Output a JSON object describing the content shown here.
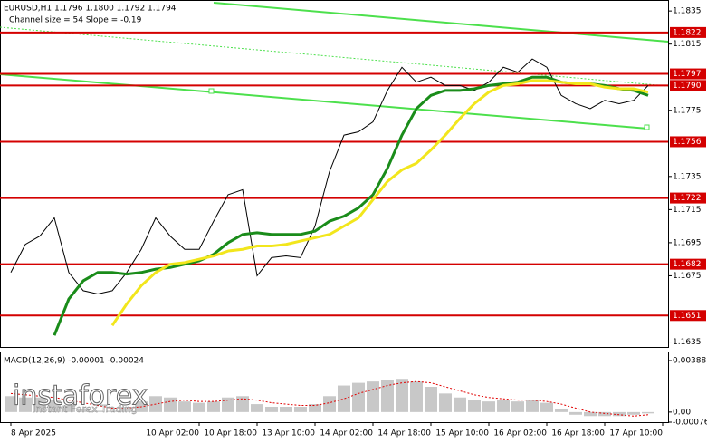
{
  "chart_data": [
    {
      "type": "line",
      "title": "EURUSD,H1  1.1796 1.1800 1.1792 1.1794",
      "subtitle": "Channel size = 54 Slope = -0.19",
      "categories": [
        "8 Apr 2025",
        null,
        null,
        null,
        null,
        null,
        null,
        null,
        null,
        null,
        null,
        null,
        null,
        "10 Apr 02:00",
        null,
        null,
        null,
        "10 Apr 18:00",
        null,
        null,
        null,
        "13 Apr 10:00",
        null,
        null,
        null,
        "14 Apr 02:00",
        null,
        null,
        null,
        "14 Apr 18:00",
        null,
        null,
        null,
        "15 Apr 10:00",
        null,
        null,
        null,
        "16 Apr 02:00",
        null,
        null,
        null,
        "16 Apr 18:00",
        null,
        null,
        null,
        "17 Apr 10:00"
      ],
      "series": [
        {
          "color": "#000000",
          "values": [
            1.1677,
            1.1694,
            1.1699,
            1.171,
            1.1677,
            1.1666,
            1.1664,
            1.1666,
            1.1677,
            1.1691,
            1.171,
            1.1699,
            1.1691,
            1.1691,
            1.1708,
            1.1724,
            1.1727,
            1.1675,
            1.1686,
            1.1687,
            1.1686,
            1.1705,
            1.1738,
            1.176,
            1.1762,
            1.1768,
            1.1787,
            1.1801,
            1.1792,
            1.1795,
            1.179,
            1.179,
            1.1787,
            1.1792,
            1.1801,
            1.1798,
            1.1806,
            1.1801,
            1.1784,
            1.1779,
            1.1776,
            1.1781,
            1.1779,
            1.1781,
            1.179,
            null
          ]
        },
        {
          "color": "#1a8c1a",
          "values": [
            null,
            null,
            null,
            1.1639,
            1.1661,
            1.1672,
            1.1677,
            1.1677,
            1.1676,
            1.1677,
            1.1679,
            1.168,
            1.1682,
            1.1684,
            1.1688,
            1.1695,
            1.17,
            1.1701,
            1.17,
            1.17,
            1.17,
            1.1702,
            1.1708,
            1.1711,
            1.1716,
            1.1724,
            1.174,
            1.176,
            1.1776,
            1.1784,
            1.1787,
            1.1787,
            1.1788,
            1.179,
            1.1791,
            1.1792,
            1.1795,
            1.1795,
            1.1792,
            1.1791,
            1.1791,
            1.179,
            1.1788,
            1.1787,
            1.1784,
            null
          ]
        },
        {
          "color": "#f2e61c",
          "values": [
            null,
            null,
            null,
            null,
            null,
            null,
            null,
            1.1645,
            1.1658,
            1.1669,
            1.1677,
            1.1682,
            1.1683,
            1.1685,
            1.1687,
            1.169,
            1.1691,
            1.1693,
            1.1693,
            1.1694,
            1.1696,
            1.1698,
            1.17,
            1.1705,
            1.171,
            1.1721,
            1.1732,
            1.1739,
            1.1743,
            1.1751,
            1.176,
            1.177,
            1.1779,
            1.1786,
            1.179,
            1.1791,
            1.1793,
            1.1793,
            1.1792,
            1.1791,
            1.1791,
            1.1789,
            1.1788,
            1.1788,
            1.1786,
            null
          ]
        }
      ],
      "levels": [
        1.1822,
        1.1797,
        {
          "value": 1.179,
          "label": "1.1790"
        },
        1.1756,
        1.1722,
        1.1682,
        1.1651
      ],
      "level_color": "#d40000",
      "ylim": [
        1.1632,
        1.184
      ],
      "yticks": [
        1.1835,
        1.1815,
        1.1775,
        1.1735,
        1.1715,
        1.1695,
        1.1675,
        1.1635
      ]
    },
    {
      "type": "macd",
      "title": "MACD(12,26,9) -0.00001 -0.00024",
      "series": [
        {
          "color": "#c8c8c8",
          "values": [
            0.0012,
            0.0011,
            0.0011,
            0.0009,
            0.0005,
            0.0002,
            0.0001,
            0.0001,
            0.0004,
            0.0008,
            0.0012,
            0.0011,
            0.0008,
            0.0007,
            0.0008,
            0.0011,
            0.0012,
            0.0006,
            0.0004,
            0.0004,
            0.0004,
            0.0006,
            0.0012,
            0.002,
            0.0022,
            0.0023,
            0.0024,
            0.0025,
            0.0023,
            0.0019,
            0.0014,
            0.0011,
            0.0009,
            0.0008,
            0.0009,
            0.0008,
            0.0009,
            0.0007,
            0.0002,
            -0.0002,
            -0.0003,
            -0.0003,
            -0.0003,
            -0.0002,
            -0.0001,
            null
          ]
        },
        {
          "color": "#e00000",
          "values": [
            0.0014,
            0.0013,
            0.0012,
            0.0011,
            0.0009,
            0.0007,
            0.0005,
            0.0003,
            0.0003,
            0.0004,
            0.0006,
            0.0008,
            0.0009,
            0.0008,
            0.0008,
            0.0009,
            0.001,
            0.0009,
            0.0007,
            0.0006,
            0.0005,
            0.0005,
            0.0007,
            0.001,
            0.0014,
            0.0017,
            0.002,
            0.0022,
            0.0023,
            0.0022,
            0.0019,
            0.0016,
            0.0013,
            0.0011,
            0.001,
            0.0009,
            0.0009,
            0.0008,
            0.0006,
            0.0003,
            0,
            -0.0001,
            -0.0002,
            -0.0003,
            -0.0002,
            null
          ]
        }
      ],
      "ylim": [
        -0.00076,
        0.00388
      ],
      "yticks": [
        0.00388,
        {
          "value": 0,
          "label": "0.00"
        },
        -0.00076
      ]
    }
  ],
  "brand": {
    "name": "instaforex",
    "tagline": "Instant Forex Trading"
  }
}
